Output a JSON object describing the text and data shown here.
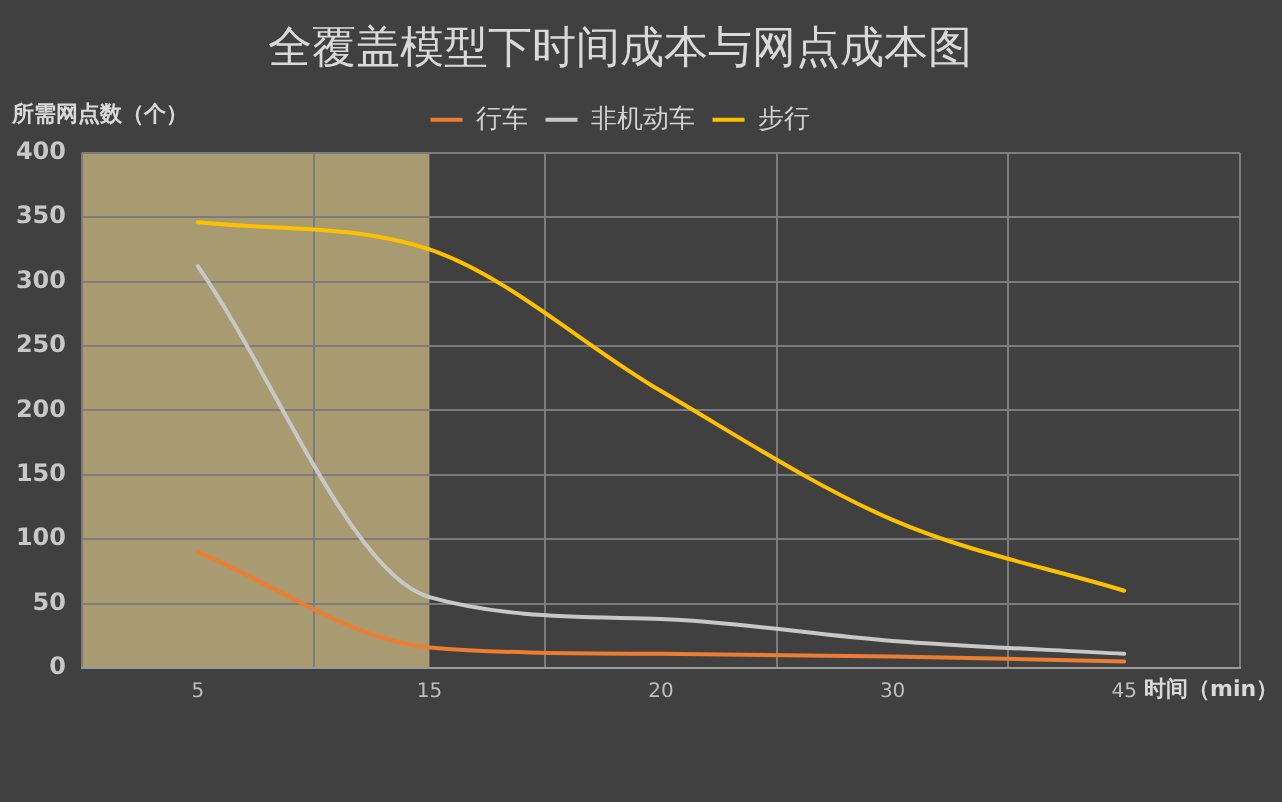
{
  "chart_data": {
    "type": "line",
    "title": "全覆盖模型下时间成本与网点成本图",
    "xlabel": "时间（min）",
    "ylabel": "所需网点数（个）",
    "categories": [
      "5",
      "15",
      "20",
      "30",
      "45"
    ],
    "series": [
      {
        "name": "行车",
        "color": "#ed7d31",
        "values": [
          90,
          16,
          11,
          9,
          5
        ]
      },
      {
        "name": "非机动车",
        "color": "#c8c8c8",
        "values": [
          312,
          55,
          38,
          21,
          11
        ]
      },
      {
        "name": "步行",
        "color": "#ffc000",
        "values": [
          346,
          325,
          215,
          115,
          60
        ]
      }
    ],
    "ylim": [
      0,
      400
    ],
    "yticks": [
      0,
      50,
      100,
      150,
      200,
      250,
      300,
      350,
      400
    ],
    "grid": true,
    "legend": "top",
    "marker": "none",
    "bands": [
      {
        "axis": "x",
        "from": "5",
        "to": "15",
        "color": "#a89b72"
      }
    ]
  }
}
